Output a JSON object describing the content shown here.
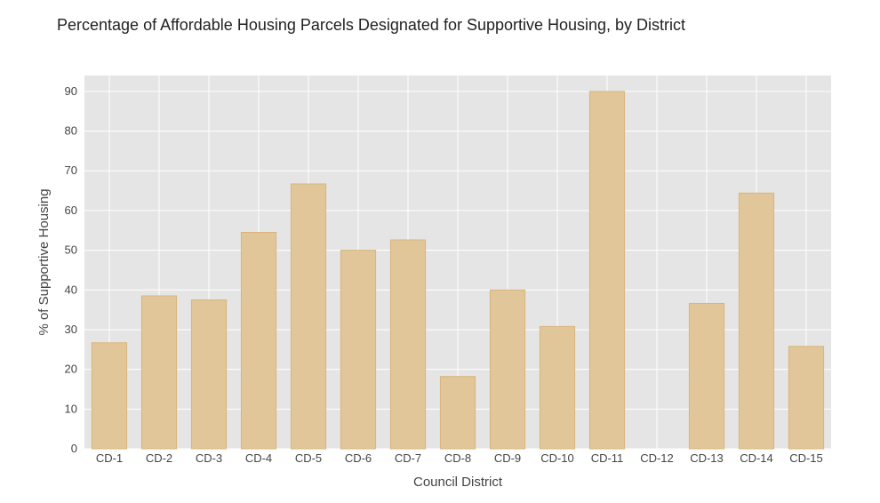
{
  "chart_data": {
    "type": "bar",
    "title": "Percentage of Affordable Housing Parcels Designated for Supportive Housing, by District",
    "xlabel": "Council District",
    "ylabel": "% of Supportive Housing",
    "categories": [
      "CD-1",
      "CD-2",
      "CD-3",
      "CD-4",
      "CD-5",
      "CD-6",
      "CD-7",
      "CD-8",
      "CD-9",
      "CD-10",
      "CD-11",
      "CD-12",
      "CD-13",
      "CD-14",
      "CD-15"
    ],
    "values": [
      26.7,
      38.5,
      37.5,
      54.5,
      66.7,
      50.0,
      52.6,
      18.2,
      40.0,
      30.8,
      90.0,
      0,
      36.6,
      64.4,
      25.8
    ],
    "ylim": [
      0,
      94
    ],
    "yticks": [
      0,
      10,
      20,
      30,
      40,
      50,
      60,
      70,
      80,
      90
    ],
    "grid": true,
    "colors": {
      "plot_background": "#e5e5e5",
      "grid": "#ffffff",
      "bar_fill": "#e1c699",
      "bar_stroke": "#d9b57c"
    }
  }
}
